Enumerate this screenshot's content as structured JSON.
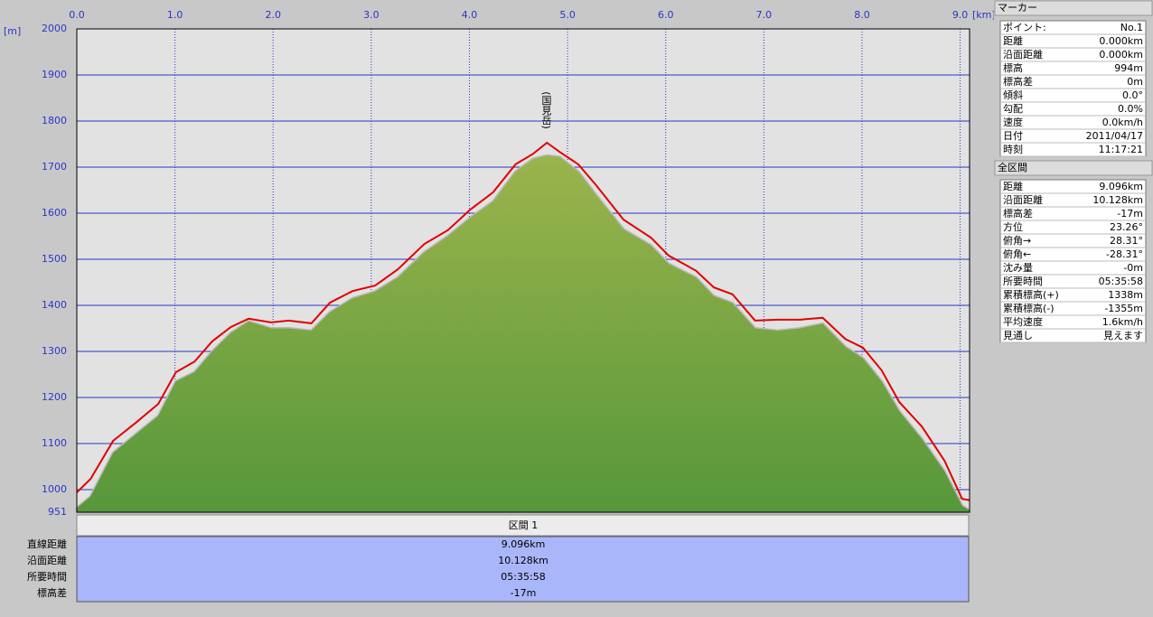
{
  "chart_data": {
    "type": "line",
    "y_label": "[m]",
    "x_label": "[km]",
    "annotation": "(国見岳)",
    "x": [
      0,
      0.14,
      0.37,
      0.6,
      0.83,
      1.01,
      1.2,
      1.38,
      1.57,
      1.75,
      1.98,
      2.16,
      2.39,
      2.58,
      2.81,
      3.04,
      3.27,
      3.54,
      3.78,
      4.01,
      4.24,
      4.47,
      4.65,
      4.79,
      4.92,
      5.11,
      5.29,
      5.57,
      5.85,
      6.03,
      6.31,
      6.49,
      6.68,
      6.91,
      7.14,
      7.37,
      7.6,
      7.83,
      8.01,
      8.2,
      8.38,
      8.61,
      8.84,
      9.02,
      9.096
    ],
    "series": [
      {
        "style": "area",
        "color": "#7aa53e",
        "values": [
          960,
          985,
          1080,
          1120,
          1160,
          1235,
          1255,
          1300,
          1340,
          1365,
          1350,
          1350,
          1345,
          1385,
          1415,
          1430,
          1460,
          1515,
          1550,
          1590,
          1625,
          1690,
          1718,
          1725,
          1722,
          1690,
          1640,
          1565,
          1530,
          1490,
          1460,
          1420,
          1405,
          1350,
          1345,
          1350,
          1360,
          1310,
          1285,
          1235,
          1170,
          1110,
          1040,
          965,
          955
        ]
      },
      {
        "style": "line",
        "color": "#e00000",
        "values": [
          994,
          1023,
          1106,
          1145,
          1186,
          1255,
          1278,
          1322,
          1353,
          1371,
          1363,
          1367,
          1361,
          1406,
          1431,
          1443,
          1478,
          1533,
          1563,
          1608,
          1645,
          1706,
          1729,
          1753,
          1733,
          1706,
          1661,
          1586,
          1547,
          1508,
          1475,
          1439,
          1424,
          1367,
          1369,
          1369,
          1373,
          1327,
          1308,
          1259,
          1190,
          1137,
          1063,
          980,
          977
        ]
      }
    ],
    "xlim": [
      0,
      9.096
    ],
    "ylim": [
      951,
      2000
    ],
    "xticks": [
      {
        "value": 0,
        "label": "0.0"
      },
      {
        "value": 1,
        "label": "1.0"
      },
      {
        "value": 2,
        "label": "2.0"
      },
      {
        "value": 3,
        "label": "3.0"
      },
      {
        "value": 4,
        "label": "4.0"
      },
      {
        "value": 5,
        "label": "5.0"
      },
      {
        "value": 6,
        "label": "6.0"
      },
      {
        "value": 7,
        "label": "7.0"
      },
      {
        "value": 8,
        "label": "8.0"
      },
      {
        "value": 9,
        "label": "9.0"
      }
    ],
    "yticks": [
      951,
      1000,
      1100,
      1200,
      1300,
      1400,
      1500,
      1600,
      1700,
      1800,
      1900,
      2000
    ],
    "grid": true
  },
  "section_table": {
    "header": "区間 1",
    "rows": [
      [
        "直線距離",
        "9.096km"
      ],
      [
        "沿面距離",
        "10.128km"
      ],
      [
        "所要時間",
        "05:35:58"
      ],
      [
        "標高差",
        "-17m"
      ]
    ]
  },
  "marker_panel": {
    "title": "マーカー",
    "rows": [
      [
        "ポイント:",
        "No.1"
      ],
      [
        "距離",
        "0.000km"
      ],
      [
        "沿面距離",
        "0.000km"
      ],
      [
        "標高",
        "994m"
      ],
      [
        "標高差",
        "0m"
      ],
      [
        "傾斜",
        "0.0°"
      ],
      [
        "勾配",
        "0.0%"
      ],
      [
        "速度",
        "0.0km/h"
      ],
      [
        "日付",
        "2011/04/17"
      ],
      [
        "時刻",
        "11:17:21"
      ]
    ]
  },
  "total_panel": {
    "title": "全区間",
    "rows": [
      [
        "距離",
        "9.096km"
      ],
      [
        "沿面距離",
        "10.128km"
      ],
      [
        "標高差",
        "-17m"
      ],
      [
        "方位",
        "23.26°"
      ],
      [
        "俯角→",
        "28.31°"
      ],
      [
        "俯角←",
        "-28.31°"
      ],
      [
        "沈み量",
        "-0m"
      ],
      [
        "所要時間",
        "05:35:58"
      ],
      [
        "累積標高(+)",
        "1338m"
      ],
      [
        "累積標高(-)",
        "-1355m"
      ],
      [
        "平均速度",
        "1.6km/h"
      ],
      [
        "見通し",
        "見えます"
      ]
    ]
  }
}
